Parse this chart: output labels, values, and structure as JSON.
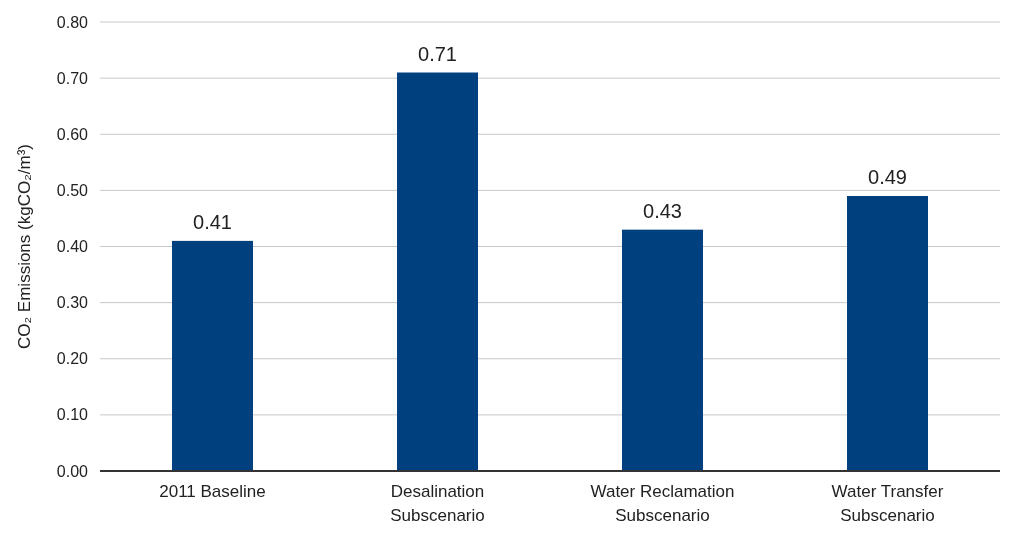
{
  "chart_data": {
    "type": "bar",
    "ylabel": "CO₂ Emissions (kgCO₂/m³)",
    "categories": [
      "2011 Baseline",
      "Desalination Subscenario",
      "Water Reclamation Subscenario",
      "Water Transfer Subscenario"
    ],
    "values": [
      0.41,
      0.71,
      0.43,
      0.49
    ],
    "color": "#00407f",
    "data_labels": true,
    "ylim": [
      0,
      0.8
    ],
    "yticks": [
      {
        "value": 0,
        "label": "0.00"
      },
      {
        "value": 0.1,
        "label": "0.10"
      },
      {
        "value": 0.2,
        "label": "0.20"
      },
      {
        "value": 0.3,
        "label": "0.30"
      },
      {
        "value": 0.4,
        "label": "0.40"
      },
      {
        "value": 0.5,
        "label": "0.50"
      },
      {
        "value": 0.6,
        "label": "0.60"
      },
      {
        "value": 0.7,
        "label": "0.70"
      },
      {
        "value": 0.8,
        "label": "0.80"
      }
    ],
    "grid": "y"
  }
}
